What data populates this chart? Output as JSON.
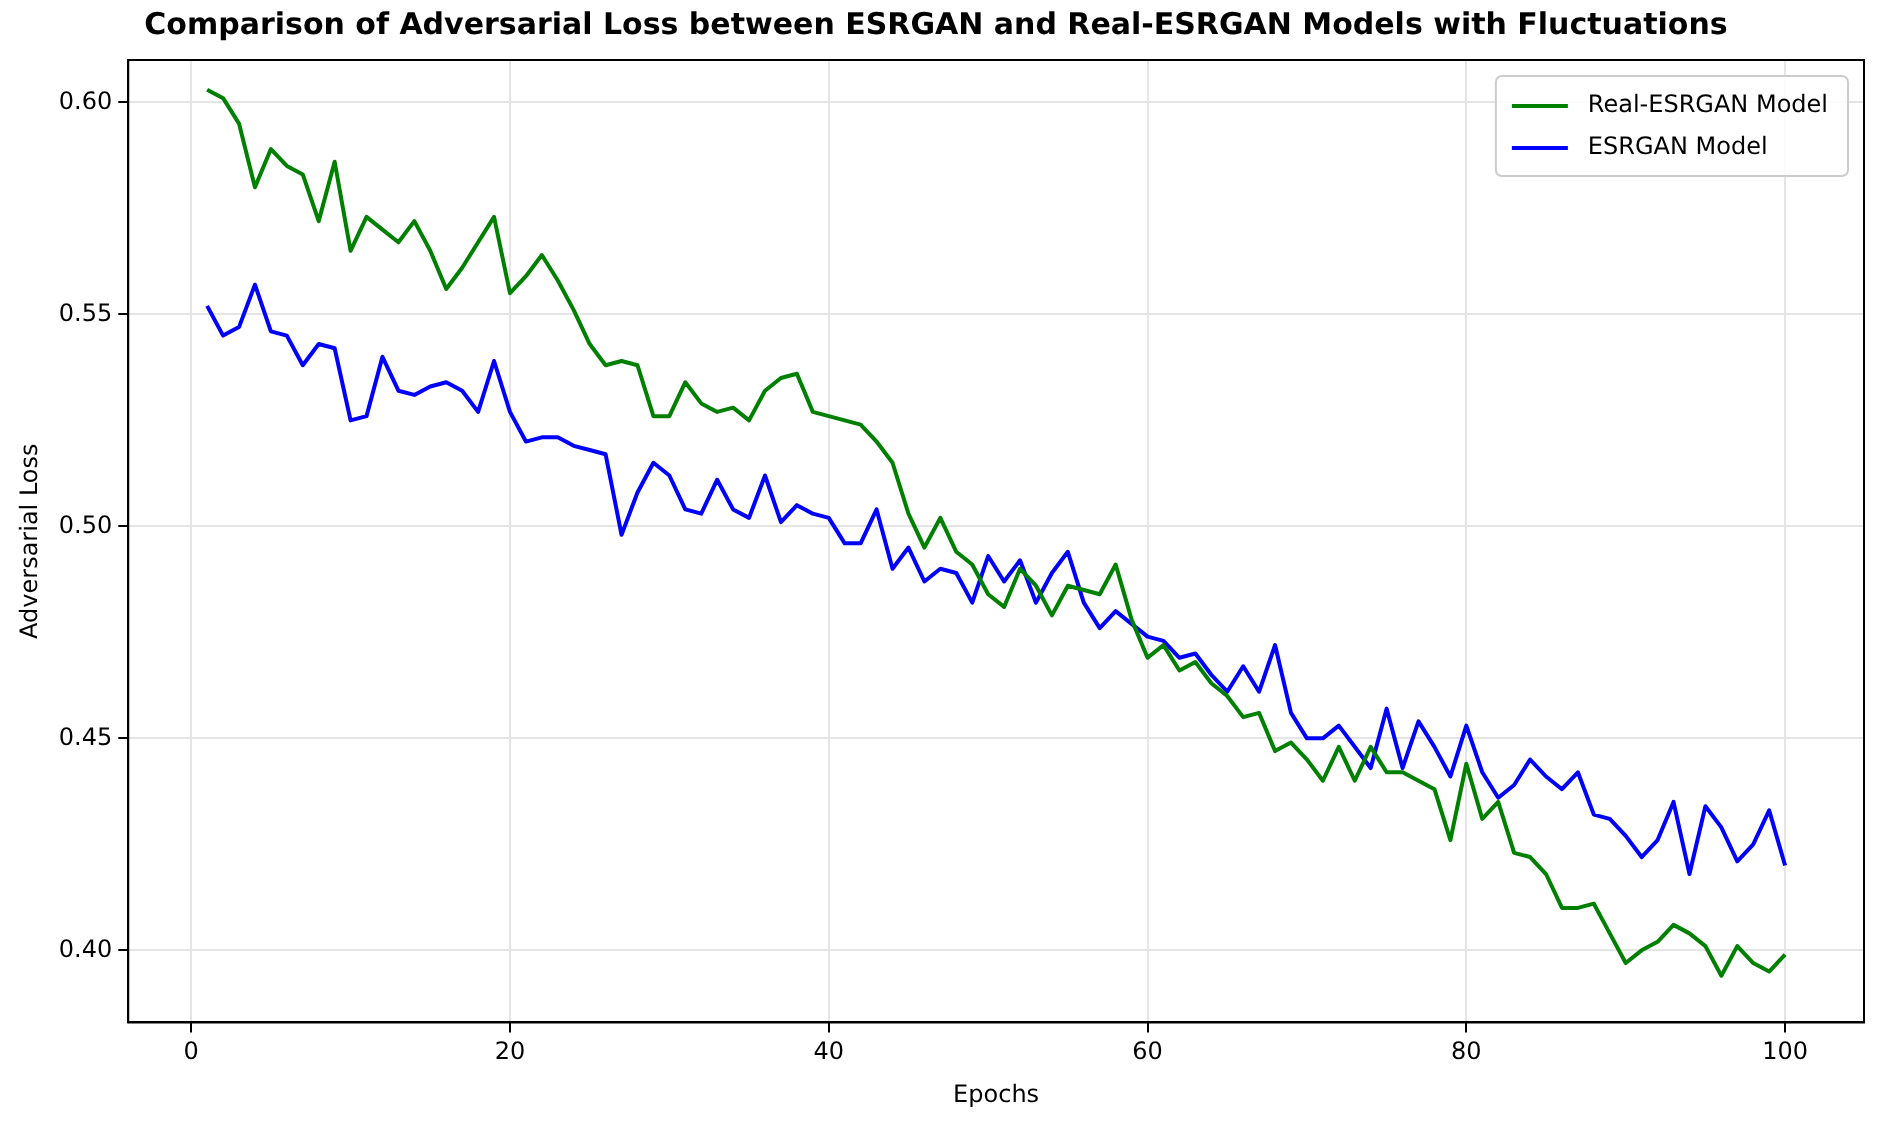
{
  "chart_data": {
    "type": "line",
    "title": "Comparison of Adversarial Loss between ESRGAN and Real-ESRGAN Models with Fluctuations",
    "xlabel": "Epochs",
    "ylabel": "Adversarial Loss",
    "x": [
      1,
      2,
      3,
      4,
      5,
      6,
      7,
      8,
      9,
      10,
      11,
      12,
      13,
      14,
      15,
      16,
      17,
      18,
      19,
      20,
      21,
      22,
      23,
      24,
      25,
      26,
      27,
      28,
      29,
      30,
      31,
      32,
      33,
      34,
      35,
      36,
      37,
      38,
      39,
      40,
      41,
      42,
      43,
      44,
      45,
      46,
      47,
      48,
      49,
      50,
      51,
      52,
      53,
      54,
      55,
      56,
      57,
      58,
      59,
      60,
      61,
      62,
      63,
      64,
      65,
      66,
      67,
      68,
      69,
      70,
      71,
      72,
      73,
      74,
      75,
      76,
      77,
      78,
      79,
      80,
      81,
      82,
      83,
      84,
      85,
      86,
      87,
      88,
      89,
      90,
      91,
      92,
      93,
      94,
      95,
      96,
      97,
      98,
      99,
      100
    ],
    "series": [
      {
        "name": "Real-ESRGAN Model",
        "color": "#008000",
        "values": [
          0.603,
          0.601,
          0.595,
          0.58,
          0.589,
          0.585,
          0.583,
          0.572,
          0.586,
          0.565,
          0.573,
          0.57,
          0.567,
          0.572,
          0.565,
          0.556,
          0.561,
          0.567,
          0.573,
          0.555,
          0.559,
          0.564,
          0.558,
          0.551,
          0.543,
          0.538,
          0.539,
          0.538,
          0.526,
          0.526,
          0.534,
          0.529,
          0.527,
          0.528,
          0.525,
          0.532,
          0.535,
          0.536,
          0.527,
          0.526,
          0.525,
          0.524,
          0.52,
          0.515,
          0.503,
          0.495,
          0.502,
          0.494,
          0.491,
          0.484,
          0.481,
          0.49,
          0.486,
          0.479,
          0.486,
          0.485,
          0.484,
          0.491,
          0.478,
          0.469,
          0.472,
          0.466,
          0.468,
          0.463,
          0.46,
          0.455,
          0.456,
          0.447,
          0.449,
          0.445,
          0.44,
          0.448,
          0.44,
          0.448,
          0.442,
          0.442,
          0.44,
          0.438,
          0.426,
          0.444,
          0.431,
          0.435,
          0.423,
          0.422,
          0.418,
          0.41,
          0.41,
          0.411,
          0.404,
          0.397,
          0.4,
          0.402,
          0.406,
          0.404,
          0.401,
          0.394,
          0.401,
          0.397,
          0.395,
          0.399
        ]
      },
      {
        "name": "ESRGAN Model",
        "color": "#0000ff",
        "values": [
          0.552,
          0.545,
          0.547,
          0.557,
          0.546,
          0.545,
          0.538,
          0.543,
          0.542,
          0.525,
          0.526,
          0.54,
          0.532,
          0.531,
          0.533,
          0.534,
          0.532,
          0.527,
          0.539,
          0.527,
          0.52,
          0.521,
          0.521,
          0.519,
          0.518,
          0.517,
          0.498,
          0.508,
          0.515,
          0.512,
          0.504,
          0.503,
          0.511,
          0.504,
          0.502,
          0.512,
          0.501,
          0.505,
          0.503,
          0.502,
          0.496,
          0.496,
          0.504,
          0.49,
          0.495,
          0.487,
          0.49,
          0.489,
          0.482,
          0.493,
          0.487,
          0.492,
          0.482,
          0.489,
          0.494,
          0.482,
          0.476,
          0.48,
          0.477,
          0.474,
          0.473,
          0.469,
          0.47,
          0.465,
          0.461,
          0.467,
          0.461,
          0.472,
          0.456,
          0.45,
          0.45,
          0.453,
          0.448,
          0.443,
          0.457,
          0.443,
          0.454,
          0.448,
          0.441,
          0.453,
          0.442,
          0.436,
          0.439,
          0.445,
          0.441,
          0.438,
          0.442,
          0.432,
          0.431,
          0.427,
          0.422,
          0.426,
          0.435,
          0.418,
          0.434,
          0.429,
          0.421,
          0.425,
          0.433,
          0.42
        ]
      }
    ],
    "xlim": [
      -3.95,
      104.95
    ],
    "ylim": [
      0.383,
      0.61
    ],
    "xticks": [
      0,
      20,
      40,
      60,
      80,
      100
    ],
    "yticks": [
      {
        "value": 0.4,
        "label": "0.40"
      },
      {
        "value": 0.45,
        "label": "0.45"
      },
      {
        "value": 0.5,
        "label": "0.50"
      },
      {
        "value": 0.55,
        "label": "0.55"
      },
      {
        "value": 0.6,
        "label": "0.60"
      }
    ],
    "grid": true,
    "legend": "top right",
    "marker": "none",
    "line_style": "solid"
  }
}
